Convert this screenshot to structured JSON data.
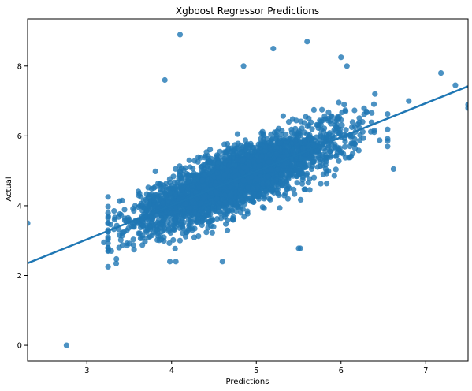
{
  "chart_data": {
    "type": "scatter",
    "title": "Xgboost Regressor Predictions",
    "xlabel": "Predictions",
    "ylabel": "Actual",
    "xlim": [
      2.3,
      7.5
    ],
    "ylim": [
      -0.45,
      9.35
    ],
    "xticks": [
      3,
      4,
      5,
      6,
      7
    ],
    "yticks": [
      0,
      2,
      4,
      6,
      8
    ],
    "grid": false,
    "series": [
      {
        "point_color": "#1f77b4",
        "points_outliers": [
          [
            2.76,
            0.0
          ],
          [
            2.3,
            3.5
          ],
          [
            4.1,
            8.9
          ],
          [
            5.6,
            8.7
          ],
          [
            5.2,
            8.5
          ],
          [
            6.0,
            8.25
          ],
          [
            6.07,
            8.0
          ],
          [
            4.85,
            8.0
          ],
          [
            3.92,
            7.6
          ],
          [
            7.18,
            7.8
          ],
          [
            7.35,
            7.45
          ],
          [
            7.5,
            6.9
          ],
          [
            7.5,
            6.8
          ],
          [
            5.5,
            2.78
          ],
          [
            5.52,
            2.78
          ],
          [
            4.6,
            2.4
          ],
          [
            3.98,
            2.4
          ],
          [
            4.05,
            2.4
          ],
          [
            3.2,
            2.95
          ],
          [
            3.38,
            2.8
          ],
          [
            6.62,
            5.05
          ],
          [
            6.8,
            7.0
          ],
          [
            6.4,
            7.2
          ]
        ],
        "cluster_count": 3200,
        "cluster_seed": 7
      }
    ],
    "regression_line": {
      "color": "#1f77b4",
      "x_range": [
        2.3,
        7.5
      ],
      "slope": 0.975,
      "intercept": 0.11
    }
  },
  "colors": {
    "background": "#ffffff",
    "axis": "#000000",
    "points": "#1f77b4"
  }
}
